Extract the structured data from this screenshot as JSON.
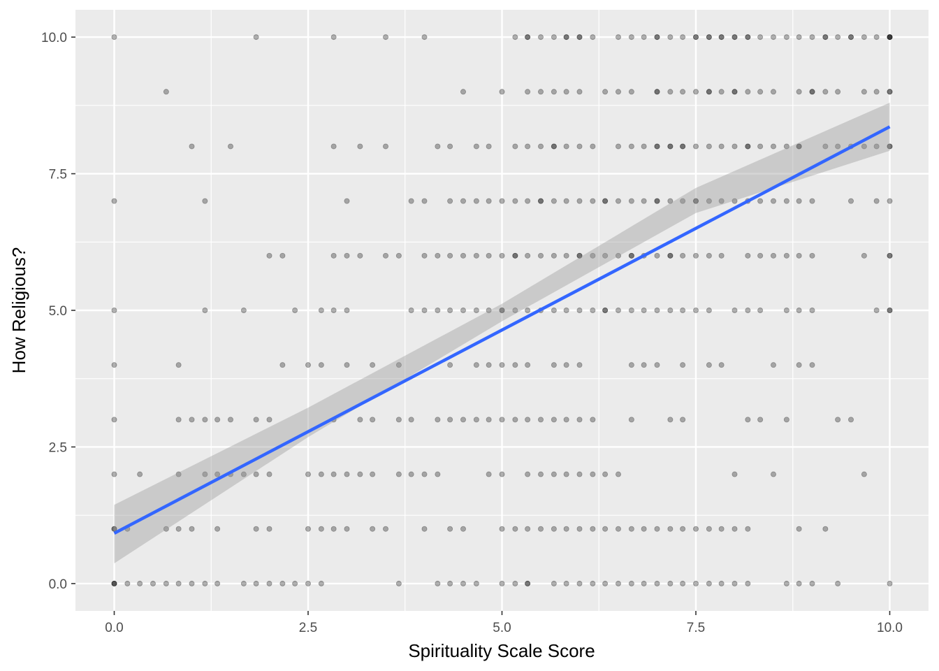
{
  "chart_data": {
    "type": "scatter",
    "title": "",
    "xlabel": "Spirituality Scale Score",
    "ylabel": "How Religious?",
    "xlim": [
      -0.5,
      10.5
    ],
    "ylim": [
      -0.5,
      10.5
    ],
    "x_ticks": [
      0,
      2.5,
      5,
      7.5,
      10
    ],
    "x_tick_labels": [
      "0.0",
      "2.5",
      "5.0",
      "7.5",
      "10.0"
    ],
    "y_ticks": [
      0,
      2.5,
      5,
      7.5,
      10
    ],
    "y_tick_labels": [
      "0.0",
      "2.5",
      "5.0",
      "7.5",
      "10.0"
    ],
    "grid": true,
    "legend": "none",
    "point_color": "#000000",
    "point_alpha": 0.3,
    "panel_background": "#ebebeb",
    "fit": {
      "method": "lm",
      "intercept": 0.92,
      "slope": 0.744,
      "x_range": [
        0,
        10
      ],
      "ci_lower": [
        [
          0,
          0.37
        ],
        [
          2.5,
          2.68
        ],
        [
          5,
          4.8
        ],
        [
          7.5,
          6.78
        ],
        [
          10,
          7.92
        ]
      ],
      "ci_upper": [
        [
          0,
          1.44
        ],
        [
          2.5,
          3.22
        ],
        [
          5,
          5.12
        ],
        [
          7.5,
          7.24
        ],
        [
          10,
          8.8
        ]
      ],
      "line_color": "#3366ff",
      "ribbon_color": "#999999"
    },
    "series": [
      {
        "y": 10,
        "x": [
          0,
          1.83,
          2.83,
          3.5,
          4,
          5.17,
          5.33,
          5.33,
          5.5,
          5.67,
          5.83,
          5.83,
          6,
          6,
          6.17,
          6.5,
          6.67,
          6.83,
          7,
          7,
          7.17,
          7.33,
          7.5,
          7.5,
          7.67,
          7.67,
          7.83,
          7.83,
          8,
          8,
          8.17,
          8.17,
          8.33,
          8.5,
          8.67,
          8.83,
          9,
          9.17,
          9.17,
          9.33,
          9.5,
          9.5,
          9.67,
          9.83,
          10,
          10,
          10,
          10
        ]
      },
      {
        "y": 9,
        "x": [
          0.67,
          4.5,
          5,
          5.33,
          5.5,
          5.67,
          5.83,
          6,
          6.33,
          6.5,
          6.67,
          7,
          7,
          7.17,
          7.33,
          7.5,
          7.67,
          7.67,
          7.83,
          8,
          8,
          8.17,
          8.33,
          8.5,
          8.83,
          9,
          9,
          9.17,
          9.33,
          9.67,
          9.83,
          10,
          10
        ]
      },
      {
        "y": 8,
        "x": [
          1,
          1.5,
          2.83,
          3.17,
          3.5,
          4.17,
          4.33,
          4.67,
          4.83,
          5.17,
          5.33,
          5.5,
          5.67,
          5.67,
          5.83,
          6,
          6.17,
          6.5,
          6.67,
          6.83,
          7,
          7,
          7.17,
          7.17,
          7.33,
          7.33,
          7.5,
          7.67,
          7.83,
          8,
          8.17,
          8.17,
          8.33,
          8.5,
          8.67,
          8.83,
          8.83,
          9.17,
          9.33,
          9.5,
          9.67,
          9.83,
          10,
          10
        ]
      },
      {
        "y": 7,
        "x": [
          0,
          1.17,
          3,
          3.83,
          4,
          4.33,
          4.5,
          4.67,
          4.83,
          5,
          5.17,
          5.33,
          5.5,
          5.5,
          5.67,
          5.83,
          6,
          6.17,
          6.33,
          6.33,
          6.5,
          6.67,
          6.83,
          7,
          7,
          7.17,
          7.33,
          7.5,
          7.5,
          7.67,
          7.83,
          8,
          8.17,
          8.33,
          8.5,
          8.67,
          8.83,
          9,
          9.5,
          9.83,
          10
        ]
      },
      {
        "y": 6,
        "x": [
          2,
          2.17,
          2.83,
          3,
          3.17,
          3.5,
          3.67,
          4,
          4.17,
          4.33,
          4.5,
          4.67,
          4.83,
          5,
          5.17,
          5.17,
          5.33,
          5.5,
          5.67,
          5.83,
          6,
          6,
          6.17,
          6.33,
          6.5,
          6.67,
          6.67,
          6.83,
          7,
          7.17,
          7.17,
          7.33,
          7.5,
          7.67,
          7.83,
          8.17,
          8.33,
          8.5,
          8.67,
          8.83,
          9,
          9.67,
          10,
          10
        ]
      },
      {
        "y": 5,
        "x": [
          0,
          1.17,
          1.67,
          2.33,
          2.67,
          2.83,
          3,
          3.83,
          4,
          4.17,
          4.33,
          4.5,
          4.67,
          4.83,
          5,
          5,
          5.17,
          5.33,
          5.5,
          5.67,
          5.83,
          6,
          6.17,
          6.33,
          6.33,
          6.5,
          6.67,
          6.83,
          7,
          7.17,
          7.33,
          7.5,
          7.67,
          8,
          8.17,
          8.33,
          8.67,
          8.83,
          9,
          9.83,
          10,
          10
        ]
      },
      {
        "y": 4,
        "x": [
          0,
          0.83,
          2.17,
          2.5,
          2.67,
          3,
          3.33,
          3.67,
          4.33,
          4.67,
          4.83,
          5,
          5.17,
          5.33,
          5.67,
          5.83,
          6,
          6.67,
          6.83,
          7,
          7.33,
          7.67,
          7.83,
          8.5,
          8.83,
          9
        ]
      },
      {
        "y": 3,
        "x": [
          0,
          0.83,
          1,
          1.17,
          1.33,
          1.5,
          1.83,
          2,
          2.83,
          3.17,
          3.33,
          3.67,
          3.83,
          4.17,
          4.33,
          4.5,
          4.67,
          4.83,
          5,
          5.17,
          5.33,
          5.5,
          5.67,
          5.83,
          6,
          6.17,
          6.67,
          7.17,
          7.33,
          8.17,
          8.33,
          8.67,
          9.33,
          9.5
        ]
      },
      {
        "y": 2,
        "x": [
          0,
          0.33,
          0.83,
          1.17,
          1.33,
          1.5,
          1.67,
          1.83,
          2,
          2.5,
          2.67,
          2.83,
          3,
          3.17,
          3.33,
          3.67,
          3.83,
          4,
          4.17,
          4.83,
          5,
          5.33,
          5.5,
          5.67,
          5.83,
          6,
          6.17,
          6.33,
          6.5,
          8,
          8.5,
          9.67
        ]
      },
      {
        "y": 1,
        "x": [
          0,
          0,
          0.17,
          0.67,
          0.83,
          1,
          1.33,
          1.83,
          2,
          2.5,
          2.67,
          2.83,
          3,
          3.33,
          3.5,
          4,
          4.33,
          4.5,
          5,
          5.17,
          5.33,
          5.5,
          5.67,
          5.83,
          6,
          6.17,
          6.33,
          6.5,
          6.67,
          6.83,
          7,
          7.17,
          7.33,
          7.5,
          7.67,
          7.83,
          8,
          8.17,
          8.83,
          9.17
        ]
      },
      {
        "y": 0,
        "x": [
          0,
          0,
          0,
          0.17,
          0.33,
          0.5,
          0.67,
          0.83,
          1,
          1.17,
          1.33,
          1.67,
          1.83,
          2,
          2.17,
          2.33,
          2.5,
          2.67,
          3.67,
          4.17,
          4.33,
          4.5,
          4.67,
          5,
          5.17,
          5.33,
          5.33,
          5.67,
          5.83,
          6,
          6.17,
          6.33,
          6.5,
          6.67,
          6.83,
          7,
          7.17,
          7.33,
          7.5,
          7.67,
          7.83,
          8,
          8.17,
          8.67,
          8.83,
          9,
          9.33,
          10
        ]
      }
    ]
  }
}
